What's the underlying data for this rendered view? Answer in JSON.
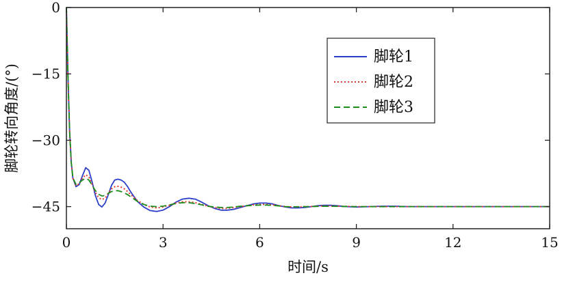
{
  "chart_data": {
    "type": "line",
    "title": "",
    "xlabel": "时间/s",
    "ylabel": "脚轮转向角度/(°)",
    "xlim": [
      0,
      15
    ],
    "ylim": [
      -50,
      0
    ],
    "x_ticks": [
      0,
      3,
      6,
      9,
      12,
      15
    ],
    "y_ticks": [
      0,
      -15,
      -30,
      -45
    ],
    "x_tick_labels": [
      "0",
      "3",
      "6",
      "9",
      "12",
      "15"
    ],
    "y_tick_labels": [
      "0",
      "−15",
      "−30",
      "−45"
    ],
    "grid": false,
    "legend_position": "top-right",
    "series": [
      {
        "name": "脚轮1",
        "color": "#2b3fc8",
        "line_style": "solid",
        "x": [
          0,
          0.05,
          0.1,
          0.15,
          0.2,
          0.3,
          0.4,
          0.5,
          0.6,
          0.7,
          0.8,
          0.9,
          1.0,
          1.1,
          1.2,
          1.3,
          1.4,
          1.5,
          1.6,
          1.7,
          1.8,
          1.9,
          2.0,
          2.2,
          2.4,
          2.6,
          2.8,
          3.0,
          3.2,
          3.4,
          3.6,
          3.8,
          4.0,
          4.2,
          4.4,
          4.6,
          4.8,
          5.0,
          5.2,
          5.4,
          5.6,
          5.8,
          6.0,
          6.2,
          6.4,
          6.6,
          6.8,
          7.0,
          7.2,
          7.4,
          7.6,
          7.8,
          8.0,
          8.2,
          8.4,
          8.6,
          8.8,
          9.0,
          9.4,
          9.8,
          10.2,
          10.6,
          11.0,
          11.5,
          12.0,
          13.0,
          14.0,
          15.0
        ],
        "y": [
          0,
          -16,
          -28,
          -35,
          -38.5,
          -40.5,
          -40.0,
          -38.0,
          -36.2,
          -36.8,
          -39.5,
          -42.5,
          -44.5,
          -45.1,
          -44.2,
          -42.3,
          -40.2,
          -39.0,
          -38.8,
          -39.0,
          -39.5,
          -40.5,
          -41.7,
          -43.8,
          -45.1,
          -45.9,
          -46.1,
          -45.8,
          -45.0,
          -44.0,
          -43.3,
          -43.1,
          -43.3,
          -44.0,
          -44.8,
          -45.4,
          -45.8,
          -45.8,
          -45.6,
          -45.2,
          -44.8,
          -44.4,
          -44.2,
          -44.2,
          -44.4,
          -44.8,
          -45.1,
          -45.3,
          -45.3,
          -45.2,
          -45.0,
          -44.8,
          -44.7,
          -44.7,
          -44.8,
          -44.95,
          -45.05,
          -45.1,
          -45.0,
          -44.9,
          -44.9,
          -45.0,
          -45.0,
          -45.0,
          -45.0,
          -45.0,
          -45.0,
          -45.0
        ]
      },
      {
        "name": "脚轮2",
        "color": "#e5392f",
        "line_style": "dotted",
        "x": [
          0,
          0.05,
          0.1,
          0.15,
          0.2,
          0.3,
          0.4,
          0.5,
          0.6,
          0.7,
          0.8,
          0.9,
          1.0,
          1.1,
          1.2,
          1.3,
          1.4,
          1.5,
          1.6,
          1.7,
          1.8,
          1.9,
          2.0,
          2.2,
          2.4,
          2.6,
          2.8,
          3.0,
          3.2,
          3.4,
          3.6,
          3.8,
          4.0,
          4.2,
          4.4,
          4.6,
          4.8,
          5.0,
          5.2,
          5.4,
          5.6,
          5.8,
          6.0,
          6.2,
          6.4,
          6.6,
          6.8,
          7.0,
          7.5,
          8.0,
          8.5,
          9.0,
          10.0,
          11.0,
          12.0,
          13.0,
          14.0,
          15.0
        ],
        "y": [
          0,
          -16,
          -28,
          -35,
          -38.5,
          -40.3,
          -39.8,
          -38.6,
          -37.8,
          -38.3,
          -40.0,
          -41.8,
          -43.0,
          -43.4,
          -43.1,
          -42.0,
          -41.0,
          -40.5,
          -40.4,
          -40.6,
          -41.0,
          -41.6,
          -42.3,
          -43.6,
          -44.5,
          -45.1,
          -45.3,
          -45.1,
          -44.7,
          -44.2,
          -43.9,
          -43.9,
          -44.1,
          -44.5,
          -44.9,
          -45.2,
          -45.4,
          -45.4,
          -45.2,
          -45.0,
          -44.8,
          -44.6,
          -44.5,
          -44.5,
          -44.6,
          -44.8,
          -45.0,
          -45.1,
          -45.0,
          -44.85,
          -44.9,
          -45.0,
          -45.0,
          -45.0,
          -45.0,
          -45.0,
          -45.0,
          -45.0
        ]
      },
      {
        "name": "脚轮3",
        "color": "#1a8c1a",
        "line_style": "dashed",
        "x": [
          0,
          0.05,
          0.1,
          0.15,
          0.2,
          0.3,
          0.4,
          0.5,
          0.6,
          0.7,
          0.8,
          0.9,
          1.0,
          1.1,
          1.2,
          1.3,
          1.4,
          1.5,
          1.6,
          1.7,
          1.8,
          1.9,
          2.0,
          2.2,
          2.4,
          2.6,
          2.8,
          3.0,
          3.2,
          3.4,
          3.6,
          3.8,
          4.0,
          4.2,
          4.4,
          4.6,
          4.8,
          5.0,
          5.2,
          5.4,
          5.6,
          5.8,
          6.0,
          6.2,
          6.4,
          6.6,
          6.8,
          7.0,
          7.5,
          8.0,
          8.5,
          9.0,
          10.0,
          11.0,
          12.0,
          13.0,
          14.0,
          15.0
        ],
        "y": [
          0,
          -16,
          -28,
          -35,
          -38.5,
          -40.0,
          -39.6,
          -39.0,
          -38.6,
          -39.0,
          -40.2,
          -41.4,
          -42.2,
          -42.6,
          -42.5,
          -42.0,
          -41.6,
          -41.4,
          -41.4,
          -41.6,
          -41.9,
          -42.3,
          -42.8,
          -43.8,
          -44.5,
          -44.9,
          -45.0,
          -44.9,
          -44.6,
          -44.3,
          -44.1,
          -44.1,
          -44.3,
          -44.6,
          -44.9,
          -45.1,
          -45.2,
          -45.2,
          -45.1,
          -44.9,
          -44.8,
          -44.7,
          -44.65,
          -44.65,
          -44.7,
          -44.85,
          -45.0,
          -45.05,
          -45.0,
          -44.9,
          -44.95,
          -45.0,
          -45.0,
          -45.0,
          -45.0,
          -45.0,
          -45.0,
          -45.0
        ]
      }
    ]
  }
}
